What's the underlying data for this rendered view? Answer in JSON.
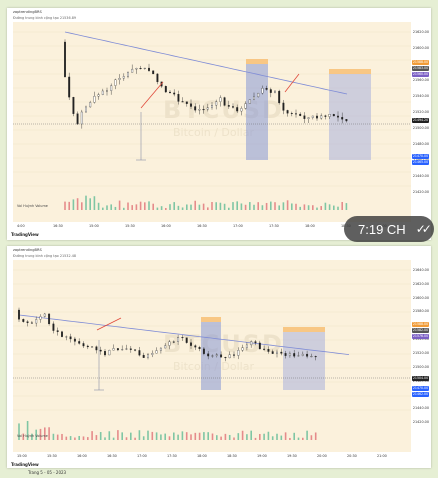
{
  "screenshots": [
    {
      "header": "zaptrendingBRS",
      "subheader": "Đường trung bình cộng tạo 21536.89",
      "watermark": "BTCUSD",
      "watermark_sub": "Bitcoin / Dollar",
      "volume_label": "Vol Huỳnh Volume",
      "price_labels": [
        "21620.00",
        "21600.00",
        "21580.00",
        "21560.00",
        "21540.00",
        "21520.00",
        "21500.00",
        "21480.00",
        "21460.00",
        "21440.00",
        "21420.00"
      ],
      "price_tags": [
        {
          "value": "21588.00",
          "color": "#f19c38"
        },
        {
          "value": "21583.00",
          "color": "#555555"
        },
        {
          "value": "21560.00",
          "color": "#7b5fc4"
        },
        {
          "value": "21494.20",
          "color": "#222222"
        },
        {
          "value": "21470.00",
          "color": "#2962ff"
        },
        {
          "value": "21465.00",
          "color": "#2962ff"
        }
      ],
      "time_labels": [
        "4:00",
        "16:30",
        "15:00",
        "15:30",
        "16:00",
        "16:30",
        "17:00",
        "17:30",
        "18:00",
        "18:30",
        "19:00"
      ],
      "tradingview_label": "TradingView"
    },
    {
      "header": "zaptrendingBRS",
      "subheader": "Đường trung bình cộng tạo 21532.48",
      "watermark": "BTCUSD",
      "watermark_sub": "Bitcoin / Dollar",
      "volume_label": "Vol Huỳnh Volume",
      "price_labels": [
        "21640.00",
        "21620.00",
        "21600.00",
        "21580.00",
        "21560.00",
        "21540.00",
        "21520.00",
        "21500.00",
        "21480.00",
        "21460.00",
        "21440.00",
        "21420.00"
      ],
      "price_tags": [
        {
          "value": "21588.00",
          "color": "#f19c38"
        },
        {
          "value": "21582.00",
          "color": "#555555"
        },
        {
          "value": "21576.00",
          "color": "#7b5fc4"
        },
        {
          "value": "21504.00",
          "color": "#222222"
        },
        {
          "value": "21470.00",
          "color": "#2962ff"
        },
        {
          "value": "21462.00",
          "color": "#2962ff"
        }
      ],
      "time_labels": [
        "15:00",
        "15:30",
        "16:00",
        "16:30",
        "17:00",
        "17:30",
        "18:00",
        "18:30",
        "19:00",
        "19:30",
        "20:00",
        "20:30",
        "21:00"
      ],
      "tradingview_label": "TradingView"
    }
  ],
  "time_badge": "7:19 CH",
  "read_status_icon": "double-check-icon",
  "bottom_caption": "Trang 5 - 05 - 2023"
}
